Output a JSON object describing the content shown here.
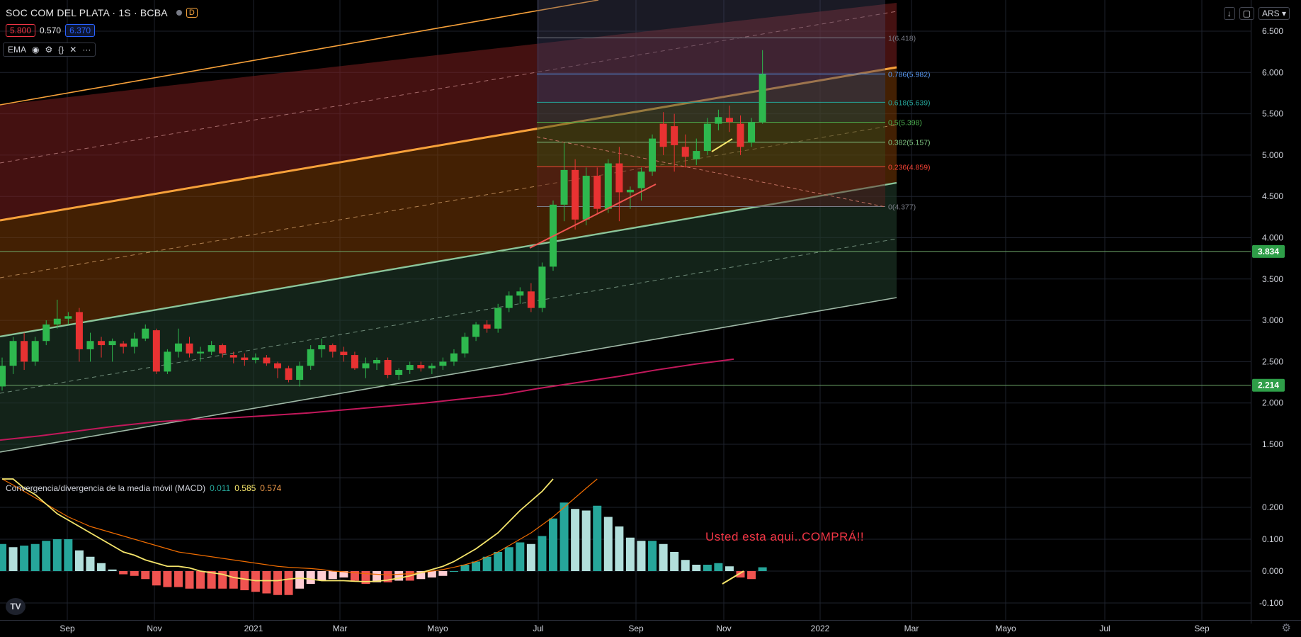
{
  "header": {
    "symbol": "SOC COM DEL PLATA · 1S · BCBA",
    "interval_badge": "D",
    "sell_price": "5.800",
    "spread": "0.570",
    "buy_price": "6.370",
    "indicator": "EMA",
    "currency": "ARS"
  },
  "macd_header": {
    "title": "Convergencia/divergencia de la media móvil (MACD)",
    "v1": "0.011",
    "v2": "0.585",
    "v3": "0.574"
  },
  "annotation": "Usted esta aqui..COMPRÁ!!",
  "colors": {
    "up": "#26a69a",
    "down": "#ef5350",
    "up_candle": "#2eb84e",
    "down_candle": "#e83232",
    "ema": "#c2185b",
    "macd_line": "#f5e56b",
    "signal_line": "#ef6c00",
    "channel_orange": "#f7a13a",
    "channel_green": "#8bc59a"
  },
  "chart_data": [
    {
      "type": "candlestick",
      "title": "SOC COM DEL PLATA · 1S · BCBA",
      "x_ticks": [
        "Sep",
        "Nov",
        "2021",
        "Mar",
        "Mayo",
        "Jul",
        "Sep",
        "Nov",
        "2022",
        "Mar",
        "Mayo",
        "Jul",
        "Sep"
      ],
      "y_ticks": [
        "6.500",
        "6.000",
        "5.500",
        "5.000",
        "4.500",
        "4.000",
        "3.500",
        "3.000",
        "2.500",
        "2.000",
        "1.500"
      ],
      "ylim": [
        1.1,
        6.85
      ],
      "candles": [
        [
          2.2,
          2.55,
          2.15,
          2.45
        ],
        [
          2.45,
          2.8,
          2.35,
          2.75
        ],
        [
          2.75,
          2.85,
          2.4,
          2.5
        ],
        [
          2.5,
          2.8,
          2.45,
          2.75
        ],
        [
          2.75,
          3.0,
          2.7,
          2.95
        ],
        [
          2.95,
          3.25,
          2.9,
          3.02
        ],
        [
          3.02,
          3.1,
          2.95,
          3.05
        ],
        [
          3.1,
          3.15,
          2.5,
          2.65
        ],
        [
          2.65,
          2.85,
          2.5,
          2.75
        ],
        [
          2.75,
          2.8,
          2.55,
          2.7
        ],
        [
          2.7,
          2.78,
          2.5,
          2.75
        ],
        [
          2.72,
          2.75,
          2.6,
          2.68
        ],
        [
          2.68,
          2.85,
          2.6,
          2.78
        ],
        [
          2.78,
          2.95,
          2.75,
          2.9
        ],
        [
          2.88,
          2.9,
          2.35,
          2.38
        ],
        [
          2.38,
          2.65,
          2.35,
          2.62
        ],
        [
          2.62,
          2.9,
          2.55,
          2.72
        ],
        [
          2.72,
          2.8,
          2.55,
          2.6
        ],
        [
          2.6,
          2.68,
          2.5,
          2.62
        ],
        [
          2.62,
          2.75,
          2.58,
          2.7
        ],
        [
          2.7,
          2.72,
          2.55,
          2.6
        ],
        [
          2.58,
          2.62,
          2.48,
          2.55
        ],
        [
          2.55,
          2.6,
          2.45,
          2.52
        ],
        [
          2.52,
          2.6,
          2.48,
          2.55
        ],
        [
          2.55,
          2.58,
          2.45,
          2.48
        ],
        [
          2.48,
          2.5,
          2.3,
          2.42
        ],
        [
          2.42,
          2.45,
          2.25,
          2.28
        ],
        [
          2.28,
          2.5,
          2.2,
          2.45
        ],
        [
          2.45,
          2.7,
          2.4,
          2.65
        ],
        [
          2.65,
          2.78,
          2.55,
          2.7
        ],
        [
          2.7,
          2.72,
          2.55,
          2.62
        ],
        [
          2.62,
          2.68,
          2.5,
          2.58
        ],
        [
          2.58,
          2.62,
          2.4,
          2.42
        ],
        [
          2.42,
          2.55,
          2.3,
          2.48
        ],
        [
          2.48,
          2.55,
          2.4,
          2.52
        ],
        [
          2.52,
          2.55,
          2.3,
          2.34
        ],
        [
          2.34,
          2.42,
          2.28,
          2.4
        ],
        [
          2.4,
          2.5,
          2.35,
          2.46
        ],
        [
          2.46,
          2.5,
          2.38,
          2.42
        ],
        [
          2.42,
          2.48,
          2.35,
          2.45
        ],
        [
          2.45,
          2.55,
          2.4,
          2.5
        ],
        [
          2.5,
          2.65,
          2.45,
          2.6
        ],
        [
          2.6,
          2.85,
          2.55,
          2.8
        ],
        [
          2.8,
          2.98,
          2.75,
          2.95
        ],
        [
          2.95,
          3.0,
          2.85,
          2.9
        ],
        [
          2.9,
          3.2,
          2.85,
          3.15
        ],
        [
          3.15,
          3.35,
          3.1,
          3.3
        ],
        [
          3.3,
          3.4,
          3.2,
          3.35
        ],
        [
          3.35,
          3.45,
          3.1,
          3.15
        ],
        [
          3.15,
          3.7,
          3.1,
          3.65
        ],
        [
          3.65,
          4.45,
          3.6,
          4.4
        ],
        [
          4.4,
          5.15,
          4.2,
          4.82
        ],
        [
          4.82,
          4.95,
          4.1,
          4.22
        ],
        [
          4.22,
          4.85,
          4.15,
          4.75
        ],
        [
          4.75,
          4.85,
          4.3,
          4.35
        ],
        [
          4.35,
          4.95,
          4.3,
          4.9
        ],
        [
          4.9,
          5.1,
          4.2,
          4.55
        ],
        [
          4.55,
          4.62,
          4.35,
          4.58
        ],
        [
          4.6,
          4.85,
          4.45,
          4.8
        ],
        [
          4.8,
          5.25,
          4.75,
          5.2
        ],
        [
          5.38,
          5.52,
          5.0,
          5.1
        ],
        [
          5.35,
          5.5,
          4.8,
          5.12
        ],
        [
          5.1,
          5.25,
          4.85,
          4.98
        ],
        [
          4.95,
          5.2,
          4.88,
          5.05
        ],
        [
          5.05,
          5.45,
          5.0,
          5.38
        ],
        [
          5.38,
          5.55,
          5.3,
          5.46
        ],
        [
          5.45,
          5.6,
          5.28,
          5.4
        ],
        [
          5.38,
          5.48,
          5.0,
          5.1
        ],
        [
          5.15,
          5.45,
          5.1,
          5.4
        ],
        [
          5.4,
          6.27,
          5.38,
          5.98
        ]
      ],
      "horizontal_levels": [
        "3.834",
        "2.214"
      ],
      "fibonacci": [
        {
          "ratio": "1",
          "price": 6.418,
          "label": "1(6.418)",
          "color": "#787b86"
        },
        {
          "ratio": "0.786",
          "price": 5.982,
          "label": "0.786(5.982)",
          "color": "#5b9cf6"
        },
        {
          "ratio": "0.618",
          "price": 5.639,
          "label": "0.618(5.639)",
          "color": "#26a69a"
        },
        {
          "ratio": "0.5",
          "price": 5.398,
          "label": "0.5(5.398)",
          "color": "#4caf50"
        },
        {
          "ratio": "0.382",
          "price": 5.157,
          "label": "0.382(5.157)",
          "color": "#81c784"
        },
        {
          "ratio": "0.236",
          "price": 4.859,
          "label": "0.236(4.859)",
          "color": "#f44336"
        },
        {
          "ratio": "0",
          "price": 4.377,
          "label": "0(4.377)",
          "color": "#787b86"
        }
      ],
      "ema": [
        1.55,
        1.6,
        1.66,
        1.72,
        1.77,
        1.8,
        1.82,
        1.85,
        1.88,
        1.92,
        1.96,
        2.0,
        2.05,
        2.1,
        2.18,
        2.25,
        2.32,
        2.4,
        2.47,
        2.53
      ]
    },
    {
      "type": "bar",
      "title": "Convergencia/divergencia de la media móvil (MACD)",
      "y_ticks": [
        "0.200",
        "0.100",
        "0.000",
        "-0.100"
      ],
      "ylim": [
        -0.14,
        0.29
      ],
      "histogram": [
        0.085,
        0.075,
        0.08,
        0.085,
        0.095,
        0.1,
        0.1,
        0.065,
        0.045,
        0.025,
        0.005,
        -0.01,
        -0.015,
        -0.025,
        -0.045,
        -0.05,
        -0.05,
        -0.055,
        -0.055,
        -0.055,
        -0.055,
        -0.055,
        -0.06,
        -0.065,
        -0.07,
        -0.075,
        -0.075,
        -0.055,
        -0.04,
        -0.03,
        -0.025,
        -0.02,
        -0.03,
        -0.04,
        -0.035,
        -0.035,
        -0.03,
        -0.03,
        -0.025,
        -0.02,
        -0.015,
        0.0,
        0.02,
        0.03,
        0.045,
        0.06,
        0.075,
        0.09,
        0.085,
        0.11,
        0.165,
        0.215,
        0.195,
        0.19,
        0.205,
        0.17,
        0.14,
        0.105,
        0.095,
        0.095,
        0.085,
        0.06,
        0.035,
        0.02,
        0.02,
        0.025,
        0.015,
        -0.02,
        -0.025,
        0.012
      ],
      "macd_line": [
        0.32,
        0.29,
        0.26,
        0.24,
        0.21,
        0.18,
        0.16,
        0.14,
        0.12,
        0.1,
        0.08,
        0.06,
        0.05,
        0.035,
        0.025,
        0.015,
        0.015,
        0.01,
        0.0,
        -0.005,
        -0.01,
        -0.02,
        -0.025,
        -0.03,
        -0.03,
        -0.03,
        -0.025,
        -0.022,
        -0.025,
        -0.03,
        -0.03,
        -0.03,
        -0.032,
        -0.033,
        -0.032,
        -0.028,
        -0.022,
        -0.015,
        -0.005,
        0.005,
        0.015,
        0.03,
        0.05,
        0.07,
        0.095,
        0.12,
        0.155,
        0.19,
        0.22,
        0.25,
        0.3
      ],
      "signal_line": [
        0.3,
        0.27,
        0.25,
        0.23,
        0.21,
        0.19,
        0.17,
        0.155,
        0.14,
        0.13,
        0.12,
        0.11,
        0.1,
        0.09,
        0.08,
        0.07,
        0.06,
        0.055,
        0.05,
        0.045,
        0.04,
        0.035,
        0.03,
        0.025,
        0.02,
        0.015,
        0.012,
        0.01,
        0.008,
        0.005,
        0.0,
        -0.002,
        -0.005,
        -0.008,
        -0.01,
        -0.012,
        -0.01,
        -0.008,
        -0.005,
        0.0,
        0.005,
        0.012,
        0.02,
        0.03,
        0.045,
        0.06,
        0.08,
        0.1,
        0.12,
        0.145,
        0.17,
        0.2,
        0.23,
        0.26,
        0.3
      ]
    }
  ]
}
